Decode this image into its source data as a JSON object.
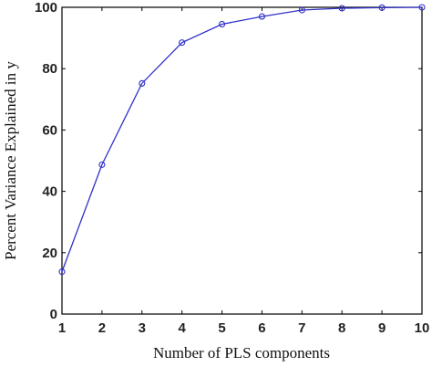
{
  "chart_data": {
    "type": "line",
    "title": "",
    "xlabel": "Number of PLS components",
    "ylabel": "Percent Variance Explained in y",
    "x": [
      1,
      2,
      3,
      4,
      5,
      6,
      7,
      8,
      9,
      10
    ],
    "series": [
      {
        "values": [
          13.8,
          48.7,
          75.2,
          88.5,
          94.5,
          97.0,
          99.1,
          99.7,
          99.9,
          100.0
        ],
        "color": "#3030c8",
        "marker": "circle"
      }
    ],
    "xlim": [
      1,
      10
    ],
    "ylim": [
      0,
      100
    ],
    "xticks": [
      1,
      2,
      3,
      4,
      5,
      6,
      7,
      8,
      9,
      10
    ],
    "yticks": [
      0,
      20,
      40,
      60,
      80,
      100
    ],
    "xtick_labels": [
      "1",
      "2",
      "3",
      "4",
      "5",
      "6",
      "7",
      "8",
      "9",
      "10"
    ],
    "ytick_labels": [
      "0",
      "20",
      "40",
      "60",
      "80",
      "100"
    ],
    "grid": false
  }
}
